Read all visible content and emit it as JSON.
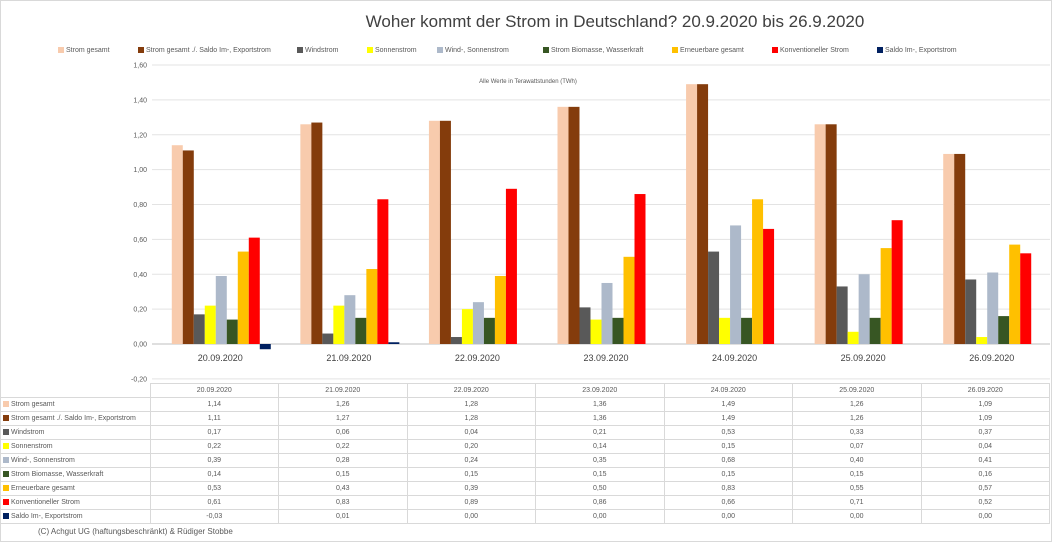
{
  "chart_data": {
    "type": "bar",
    "title": "Woher kommt der Strom in Deutschland? 20.9.2020 bis 26.9.2020",
    "subtitle": "Alle Werte in Terawattstunden (TWh)",
    "xlabel": "",
    "ylabel": "",
    "ylim": [
      -0.2,
      1.6
    ],
    "yticks": [
      "1,60",
      "1,40",
      "1,20",
      "1,00",
      "0,80",
      "0,60",
      "0,40",
      "0,20",
      "0,00",
      "-0,20"
    ],
    "ytick_values": [
      1.6,
      1.4,
      1.2,
      1.0,
      0.8,
      0.6,
      0.4,
      0.2,
      0.0,
      -0.2
    ],
    "grid": true,
    "legend": "top",
    "categories": [
      "20.09.2020",
      "21.09.2020",
      "22.09.2020",
      "23.09.2020",
      "24.09.2020",
      "25.09.2020",
      "26.09.2020"
    ],
    "series": [
      {
        "name": "Strom gesamt",
        "color": "#f8cbad",
        "values": [
          1.14,
          1.26,
          1.28,
          1.36,
          1.49,
          1.26,
          1.09
        ],
        "labels": [
          "1,14",
          "1,26",
          "1,28",
          "1,36",
          "1,49",
          "1,26",
          "1,09"
        ]
      },
      {
        "name": "Strom gesamt ./. Saldo Im-, Exportstrom",
        "color": "#843c0c",
        "values": [
          1.11,
          1.27,
          1.28,
          1.36,
          1.49,
          1.26,
          1.09
        ],
        "labels": [
          "1,11",
          "1,27",
          "1,28",
          "1,36",
          "1,49",
          "1,26",
          "1,09"
        ]
      },
      {
        "name": "Windstrom",
        "color": "#595959",
        "values": [
          0.17,
          0.06,
          0.04,
          0.21,
          0.53,
          0.33,
          0.37
        ],
        "labels": [
          "0,17",
          "0,06",
          "0,04",
          "0,21",
          "0,53",
          "0,33",
          "0,37"
        ]
      },
      {
        "name": "Sonnenstrom",
        "color": "#ffff00",
        "values": [
          0.22,
          0.22,
          0.2,
          0.14,
          0.15,
          0.07,
          0.04
        ],
        "labels": [
          "0,22",
          "0,22",
          "0,20",
          "0,14",
          "0,15",
          "0,07",
          "0,04"
        ]
      },
      {
        "name": "Wind-, Sonnenstrom",
        "color": "#adb9ca",
        "values": [
          0.39,
          0.28,
          0.24,
          0.35,
          0.68,
          0.4,
          0.41
        ],
        "labels": [
          "0,39",
          "0,28",
          "0,24",
          "0,35",
          "0,68",
          "0,40",
          "0,41"
        ]
      },
      {
        "name": "Strom Biomasse, Wasserkraft",
        "color": "#375623",
        "values": [
          0.14,
          0.15,
          0.15,
          0.15,
          0.15,
          0.15,
          0.16
        ],
        "labels": [
          "0,14",
          "0,15",
          "0,15",
          "0,15",
          "0,15",
          "0,15",
          "0,16"
        ]
      },
      {
        "name": "Erneuerbare gesamt",
        "color": "#ffc000",
        "values": [
          0.53,
          0.43,
          0.39,
          0.5,
          0.83,
          0.55,
          0.57
        ],
        "labels": [
          "0,53",
          "0,43",
          "0,39",
          "0,50",
          "0,83",
          "0,55",
          "0,57"
        ]
      },
      {
        "name": "Konventioneller Strom",
        "color": "#ff0000",
        "values": [
          0.61,
          0.83,
          0.89,
          0.86,
          0.66,
          0.71,
          0.52
        ],
        "labels": [
          "0,61",
          "0,83",
          "0,89",
          "0,86",
          "0,66",
          "0,71",
          "0,52"
        ]
      },
      {
        "name": "Saldo Im-, Exportstrom",
        "color": "#002060",
        "values": [
          -0.03,
          0.01,
          0.0,
          0.0,
          0.0,
          0.0,
          0.0
        ],
        "labels": [
          "-0,03",
          "0,01",
          "0,00",
          "0,00",
          "0,00",
          "0,00",
          "0,00"
        ]
      }
    ]
  },
  "footer": "(C) Achgut UG (haftungsbeschränkt) & Rüdiger Stobbe"
}
